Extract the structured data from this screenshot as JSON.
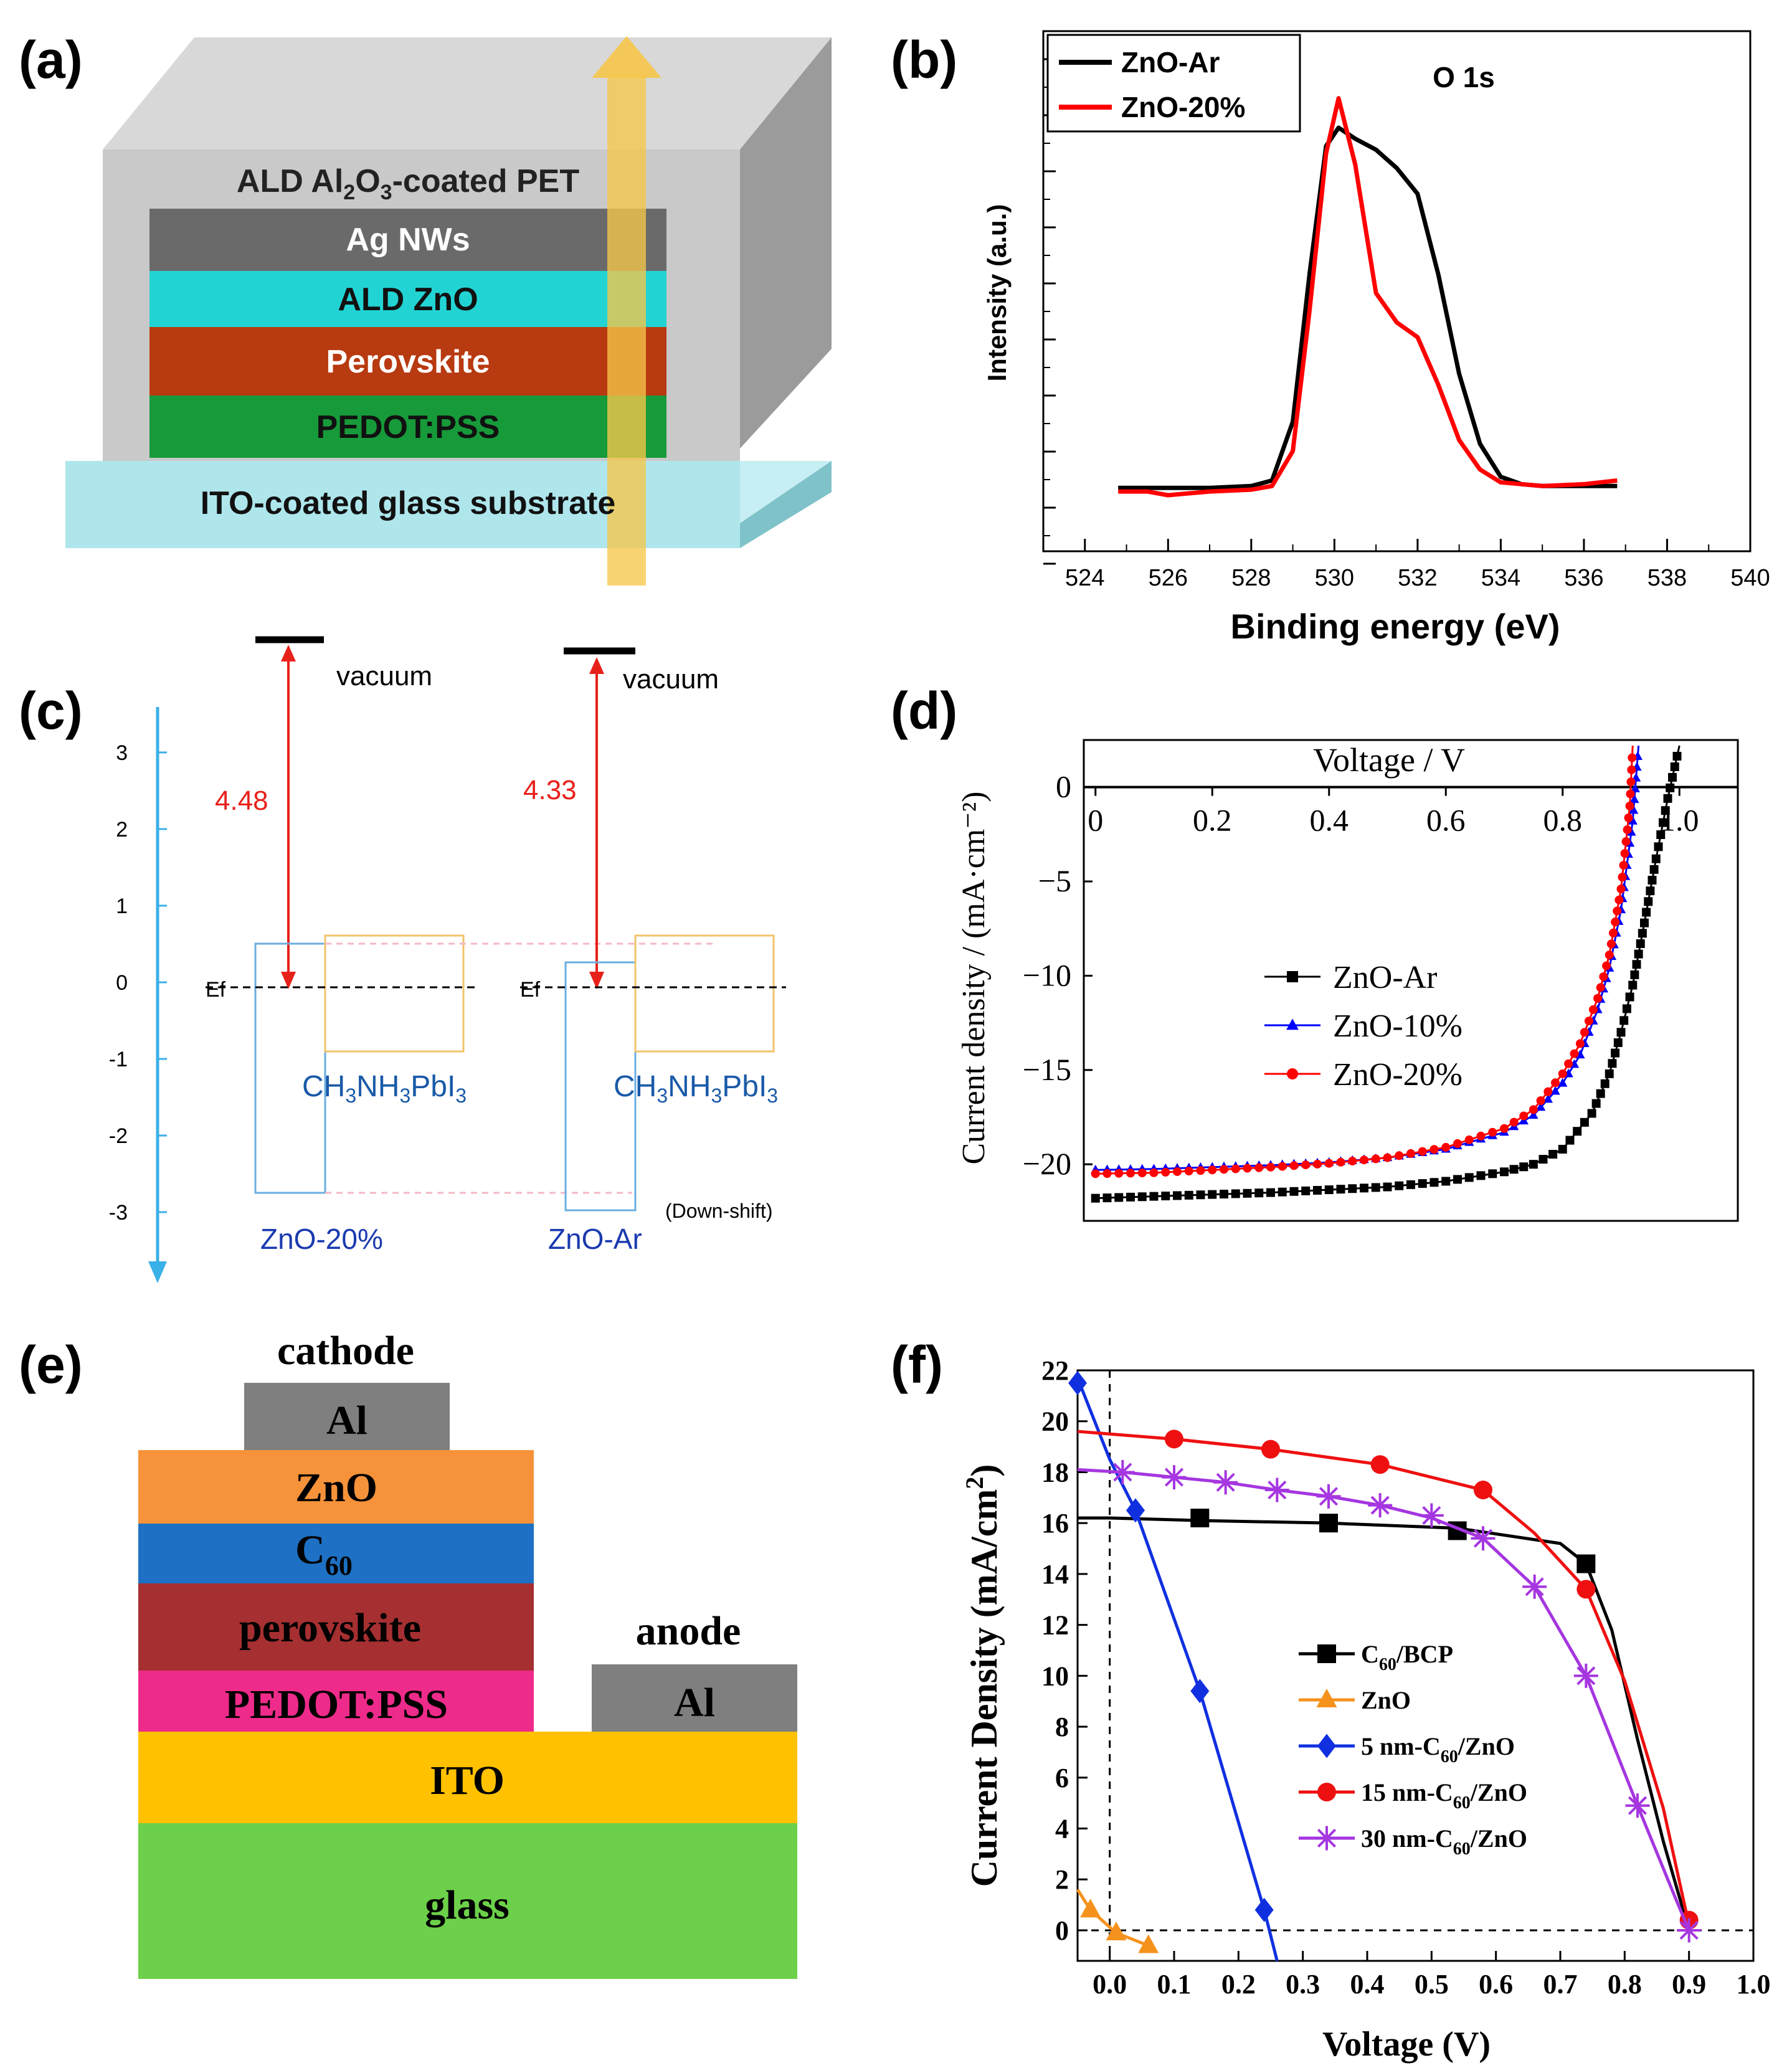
{
  "panel_labels": [
    "(a)",
    "(b)",
    "(c)",
    "(d)",
    "(e)",
    "(f)"
  ],
  "panel_a": {
    "layers": [
      "ALD Al2O3-coated PET",
      "Ag NWs",
      "ALD ZnO",
      "Perovskite",
      "PEDOT:PSS",
      "ITO-coated glass substrate"
    ],
    "colors": {
      "pet": "#c9c9c9",
      "agnws": "#6a6a6a",
      "zno": "#22d3d3",
      "perovskite": "#b83a10",
      "pedot": "#179a3a",
      "glass": "#aee6ec",
      "arrow": "#f6c64a"
    }
  },
  "panel_c": {
    "axis_ticks": [
      "3",
      "2",
      "1",
      "0",
      "-1",
      "-2",
      "-3"
    ],
    "vacuum_label": "vacuum",
    "ef_label": "Ef",
    "left": {
      "gap": "4.48",
      "material": "CH3NH3PbI3",
      "name": "ZnO-20%"
    },
    "right": {
      "gap": "4.33",
      "material": "CH3NH3PbI3",
      "name": "ZnO-Ar",
      "note": "(Down-shift)"
    },
    "colors": {
      "axis": "#3ab0e8",
      "arrow": "#e8201a",
      "zno_box": "#6aaee0",
      "perovskite_box": "#f2c36a",
      "label": "#1a5aa8",
      "name": "#1a3ab0"
    }
  },
  "panel_e": {
    "layers": [
      "Al",
      "ZnO",
      "C60",
      "perovskite",
      "PEDOT:PSS",
      "ITO",
      "glass"
    ],
    "cathode": "cathode",
    "anode": "anode",
    "anode_material": "Al",
    "colors": {
      "al": "#7f7f7f",
      "zno": "#f5923a",
      "c60": "#1d70c3",
      "perovskite": "#a52f31",
      "pedot": "#ee2b8a",
      "ito": "#ffc100",
      "glass": "#6cd04a"
    }
  },
  "chart_data": [
    {
      "panel": "b",
      "type": "line",
      "title": "O 1s",
      "xlabel": "Binding energy (eV)",
      "ylabel": "Intensity (a.u.)",
      "xlim": [
        523,
        540
      ],
      "xticks": [
        "524",
        "526",
        "528",
        "530",
        "532",
        "534",
        "536",
        "538",
        "540"
      ],
      "legend_position": "top-left",
      "series": [
        {
          "name": "ZnO-Ar",
          "color": "#000000",
          "x": [
            524.8,
            525.5,
            526,
            527,
            528,
            528.5,
            529,
            529.4,
            529.8,
            530.1,
            530.5,
            531,
            531.5,
            532,
            532.5,
            533,
            533.5,
            534,
            534.5,
            535,
            536,
            536.8
          ],
          "y": [
            0.02,
            0.02,
            0.02,
            0.02,
            0.025,
            0.04,
            0.2,
            0.6,
            0.95,
            1.0,
            0.97,
            0.94,
            0.89,
            0.82,
            0.6,
            0.33,
            0.14,
            0.05,
            0.03,
            0.025,
            0.025,
            0.025
          ]
        },
        {
          "name": "ZnO-20%",
          "color": "#ff0000",
          "x": [
            524.8,
            525.5,
            526,
            527,
            528,
            528.5,
            529,
            529.4,
            529.8,
            530.1,
            530.5,
            531,
            531.5,
            532,
            532.5,
            533,
            533.5,
            534,
            534.5,
            535,
            536,
            536.8
          ],
          "y": [
            0.01,
            0.01,
            0.0,
            0.01,
            0.015,
            0.025,
            0.12,
            0.5,
            0.93,
            1.08,
            0.9,
            0.55,
            0.47,
            0.43,
            0.3,
            0.15,
            0.07,
            0.035,
            0.03,
            0.025,
            0.03,
            0.04
          ]
        }
      ]
    },
    {
      "panel": "d",
      "type": "line",
      "xlabel": "Voltage / V",
      "ylabel": "Current density / (mA·cm⁻²)",
      "xlim": [
        -0.02,
        1.1
      ],
      "ylim": [
        -23,
        2.5
      ],
      "xticks": [
        "0",
        "0.2",
        "0.4",
        "0.6",
        "0.8",
        "1.0"
      ],
      "yticks": [
        "0",
        "−5",
        "−10",
        "−15",
        "−20"
      ],
      "legend_position": "center",
      "series": [
        {
          "name": "ZnO-Ar",
          "color": "#000000",
          "marker": "square",
          "x": [
            0,
            0.1,
            0.2,
            0.3,
            0.4,
            0.5,
            0.6,
            0.7,
            0.75,
            0.8,
            0.85,
            0.88,
            0.9,
            0.92,
            0.94,
            0.96,
            0.98,
            1.0
          ],
          "y": [
            -21.8,
            -21.7,
            -21.6,
            -21.5,
            -21.35,
            -21.2,
            -20.9,
            -20.4,
            -20.0,
            -19.2,
            -17.3,
            -15.2,
            -13.0,
            -10.5,
            -7.2,
            -3.8,
            -0.6,
            2.2
          ]
        },
        {
          "name": "ZnO-10%",
          "color": "#0000ff",
          "marker": "triangle",
          "x": [
            0,
            0.1,
            0.2,
            0.3,
            0.4,
            0.5,
            0.6,
            0.7,
            0.75,
            0.8,
            0.83,
            0.86,
            0.88,
            0.9,
            0.92,
            0.93
          ],
          "y": [
            -20.3,
            -20.25,
            -20.15,
            -20.05,
            -19.9,
            -19.65,
            -19.2,
            -18.3,
            -17.4,
            -15.7,
            -14.2,
            -11.8,
            -9.6,
            -6.5,
            -1.8,
            2.2
          ]
        },
        {
          "name": "ZnO-20%",
          "color": "#ff0000",
          "marker": "circle",
          "x": [
            0,
            0.1,
            0.2,
            0.3,
            0.4,
            0.5,
            0.6,
            0.7,
            0.75,
            0.8,
            0.83,
            0.86,
            0.88,
            0.9,
            0.915,
            0.92
          ],
          "y": [
            -20.5,
            -20.45,
            -20.3,
            -20.15,
            -19.95,
            -19.65,
            -19.1,
            -18.1,
            -17.1,
            -15.2,
            -13.6,
            -11.2,
            -8.9,
            -5.4,
            -1.0,
            2.2
          ]
        }
      ]
    },
    {
      "panel": "f",
      "type": "line",
      "xlabel": "Voltage (V)",
      "ylabel": "Current Density (mA/cm²)",
      "xlim": [
        -0.05,
        1.0
      ],
      "ylim": [
        -1.2,
        22
      ],
      "xticks": [
        "0.0",
        "0.1",
        "0.2",
        "0.3",
        "0.4",
        "0.5",
        "0.6",
        "0.7",
        "0.8",
        "0.9",
        "1.0"
      ],
      "yticks": [
        "0",
        "2",
        "4",
        "6",
        "8",
        "10",
        "12",
        "14",
        "16",
        "18",
        "20",
        "22"
      ],
      "legend_position": "bottom-right",
      "series": [
        {
          "name": "C60/BCP",
          "color": "#000000",
          "marker": "square",
          "x": [
            -0.05,
            0.0,
            0.14,
            0.34,
            0.54,
            0.7,
            0.74,
            0.78,
            0.82,
            0.86,
            0.9
          ],
          "y": [
            16.2,
            16.2,
            16.1,
            16.0,
            15.8,
            15.2,
            14.4,
            11.8,
            7.5,
            3.5,
            0.0
          ],
          "markers_x": [
            0.14,
            0.34,
            0.54,
            0.74
          ],
          "markers_y": [
            16.2,
            16.0,
            15.7,
            14.4
          ]
        },
        {
          "name": "ZnO",
          "color": "#f5921e",
          "marker": "triangle",
          "x": [
            -0.05,
            -0.03,
            0.01,
            0.06
          ],
          "y": [
            1.6,
            0.8,
            -0.1,
            -0.6
          ],
          "markers_x": [
            -0.03,
            0.01,
            0.06
          ],
          "markers_y": [
            0.8,
            -0.1,
            -0.6
          ]
        },
        {
          "name": "5 nm-C60/ZnO",
          "color": "#1030e0",
          "marker": "diamond",
          "x": [
            -0.05,
            0.0,
            0.04,
            0.14,
            0.24,
            0.26
          ],
          "y": [
            21.7,
            18.5,
            16.5,
            9.4,
            0.8,
            -1.2
          ],
          "markers_x": [
            -0.05,
            0.04,
            0.14,
            0.24
          ],
          "markers_y": [
            21.5,
            16.5,
            9.4,
            0.8
          ]
        },
        {
          "name": "15 nm-C60/ZnO",
          "color": "#ee1010",
          "marker": "circle",
          "x": [
            -0.05,
            0.1,
            0.25,
            0.42,
            0.58,
            0.66,
            0.74,
            0.8,
            0.86,
            0.9
          ],
          "y": [
            19.6,
            19.3,
            18.9,
            18.3,
            17.3,
            15.6,
            13.4,
            9.8,
            4.8,
            0.2
          ],
          "markers_x": [
            0.1,
            0.25,
            0.42,
            0.58,
            0.74,
            0.9
          ],
          "markers_y": [
            19.3,
            18.9,
            18.3,
            17.3,
            13.4,
            0.4
          ]
        },
        {
          "name": "30 nm-C60/ZnO",
          "color": "#a536e0",
          "marker": "asterisk",
          "x": [
            -0.05,
            0.02,
            0.1,
            0.18,
            0.26,
            0.34,
            0.42,
            0.5,
            0.58,
            0.66,
            0.74,
            0.82,
            0.88,
            0.9
          ],
          "y": [
            18.1,
            18.0,
            17.8,
            17.6,
            17.3,
            17.05,
            16.7,
            16.2,
            15.4,
            13.5,
            10.0,
            4.9,
            1.2,
            0.0
          ],
          "markers_x": [
            0.02,
            0.1,
            0.18,
            0.26,
            0.34,
            0.42,
            0.5,
            0.58,
            0.66,
            0.74,
            0.82,
            0.9
          ],
          "markers_y": [
            18.0,
            17.8,
            17.6,
            17.3,
            17.05,
            16.7,
            16.3,
            15.4,
            13.5,
            10.0,
            4.9,
            0.0
          ]
        }
      ]
    }
  ]
}
